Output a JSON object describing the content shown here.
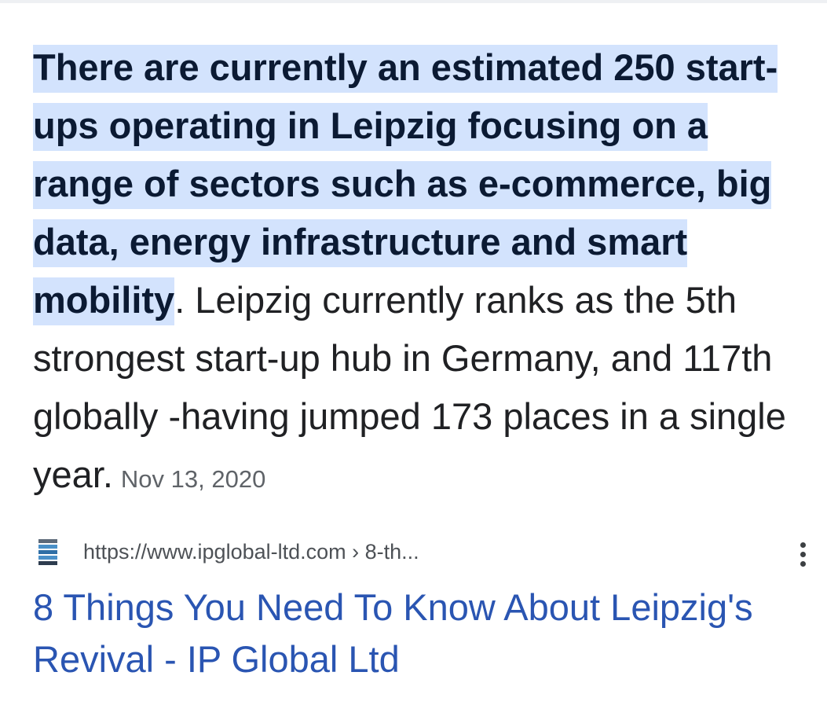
{
  "snippet": {
    "highlighted_text": "There are currently an estimated 250 start-ups operating in Leipzig focusing on a range of sectors such as e-commerce, big data, energy infrastructure and smart mobility",
    "rest_text": ". Leipzig currently ranks as the 5th strongest start-up hub in Germany, and 117th globally -having jumped 173 places in a single year.",
    "date": "Nov 13, 2020"
  },
  "source": {
    "url": "https://www.ipglobal-ltd.com › 8-th...",
    "favicon_icon": "stacked-bars-favicon-icon",
    "more_icon": "more-vert-icon"
  },
  "result": {
    "title": "8 Things You Need To Know About Leipzig's Revival - IP Global Ltd"
  },
  "colors": {
    "highlight": "#d3e3fd",
    "link": "#2a55b2",
    "body_text": "#202124",
    "muted": "#5f6368"
  }
}
